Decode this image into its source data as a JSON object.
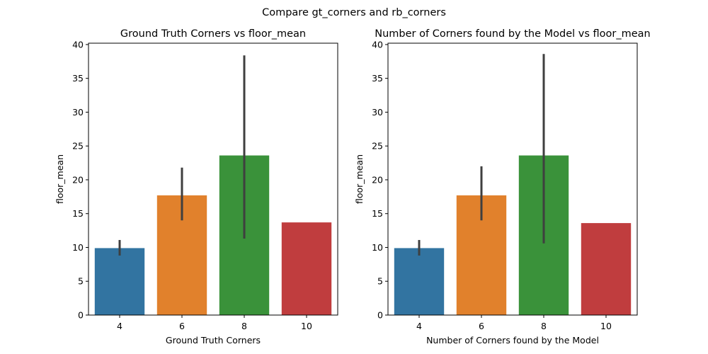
{
  "figure": {
    "suptitle": "Compare gt_corners and rb_corners"
  },
  "chart_data": [
    {
      "type": "bar",
      "title": "Ground Truth Corners vs floor_mean",
      "xlabel": "Ground Truth Corners",
      "ylabel": "floor_mean",
      "categories": [
        "4",
        "6",
        "8",
        "10"
      ],
      "values": [
        9.9,
        17.7,
        23.6,
        13.7
      ],
      "error_bars": [
        [
          8.8,
          11.1
        ],
        [
          14.0,
          21.8
        ],
        [
          11.3,
          38.4
        ],
        [
          13.7,
          13.7
        ]
      ],
      "colors": [
        "#3274a1",
        "#e1812c",
        "#3a923a",
        "#c03d3e"
      ],
      "ylim": [
        0,
        40.2
      ],
      "yticks": [
        0,
        5,
        10,
        15,
        20,
        25,
        30,
        35,
        40
      ],
      "grid": false
    },
    {
      "type": "bar",
      "title": "Number of Corners found by the Model vs floor_mean",
      "xlabel": "Number of Corners found by the Model",
      "ylabel": "floor_mean",
      "categories": [
        "4",
        "6",
        "8",
        "10"
      ],
      "values": [
        9.9,
        17.7,
        23.6,
        13.6
      ],
      "error_bars": [
        [
          8.8,
          11.1
        ],
        [
          14.0,
          22.0
        ],
        [
          10.6,
          38.6
        ],
        [
          13.6,
          13.6
        ]
      ],
      "colors": [
        "#3274a1",
        "#e1812c",
        "#3a923a",
        "#c03d3e"
      ],
      "ylim": [
        0,
        40.2
      ],
      "yticks": [
        0,
        5,
        10,
        15,
        20,
        25,
        30,
        35,
        40
      ],
      "grid": false
    }
  ]
}
